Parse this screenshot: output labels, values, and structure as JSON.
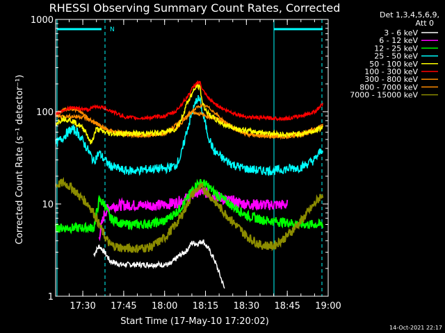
{
  "chart_data": {
    "type": "line",
    "title": "RHESSI Observing Summary Count Rates, Corrected",
    "xlabel": "Start Time (17-May-10 17:20:02)",
    "ylabel": "Corrected Count Rate (s⁻¹ detector⁻¹)",
    "y_scale": "log",
    "ylim": [
      1,
      1000
    ],
    "xlim": [
      "17:20:02",
      "19:00"
    ],
    "x_ticks": [
      "17:30",
      "17:45",
      "18:00",
      "18:15",
      "18:30",
      "18:45",
      "19:00"
    ],
    "y_ticks": [
      "1",
      "10",
      "100",
      "1000"
    ],
    "legend_header": [
      "Det 1,3,4,5,6,9,",
      "Att 0"
    ],
    "legend_position": "right",
    "footer": "14-Oct-2021 22:17",
    "marker_N": "N",
    "series": [
      {
        "name": "3 - 6 keV",
        "color": "#ffffff",
        "x": [
          "17:34",
          "17:36",
          "17:38",
          "17:40",
          "17:44",
          "17:50",
          "17:55",
          "18:02",
          "18:05",
          "18:08",
          "18:10",
          "18:12",
          "18:14",
          "18:16",
          "18:18",
          "18:20",
          "18:22"
        ],
        "values": [
          2.8,
          3.5,
          3,
          2.4,
          2.2,
          2.2,
          2.2,
          2.2,
          2.7,
          3.1,
          3.8,
          3.7,
          4,
          3.3,
          2.6,
          1.8,
          1.2
        ]
      },
      {
        "name": "6 - 12 keV",
        "color": "#ff00ff",
        "x": [
          "17:36",
          "17:38",
          "17:40",
          "17:45",
          "17:50",
          "17:55",
          "18:00",
          "18:05",
          "18:08",
          "18:10",
          "18:12",
          "18:14",
          "18:16",
          "18:18",
          "18:22",
          "18:26",
          "18:30",
          "18:35",
          "18:40",
          "18:45"
        ],
        "values": [
          4.5,
          8,
          9.5,
          9.7,
          9.7,
          9.7,
          9.8,
          10.5,
          11.5,
          12.5,
          13.5,
          13.5,
          13,
          12.5,
          11.2,
          10.5,
          10,
          9.8,
          9.8,
          9.8
        ]
      },
      {
        "name": "12 - 25 keV",
        "color": "#00ff00",
        "x": [
          "17:20",
          "17:25",
          "17:30",
          "17:34",
          "17:36",
          "17:38",
          "17:40",
          "17:45",
          "17:50",
          "17:55",
          "18:00",
          "18:05",
          "18:08",
          "18:10",
          "18:12",
          "18:14",
          "18:16",
          "18:18",
          "18:22",
          "18:26",
          "18:30",
          "18:35",
          "18:40",
          "18:45",
          "18:50",
          "18:55",
          "18:58"
        ],
        "values": [
          5.5,
          5.5,
          5.5,
          5.5,
          11,
          10,
          7,
          6,
          6,
          6.1,
          6.5,
          8.5,
          11,
          14,
          16.5,
          17,
          15.5,
          13.5,
          11,
          9,
          7.5,
          6.8,
          6.5,
          6.3,
          6,
          6,
          6
        ]
      },
      {
        "name": "25 - 50 keV",
        "color": "#00ffff",
        "x": [
          "17:20",
          "17:22",
          "17:24",
          "17:26",
          "17:28",
          "17:30",
          "17:32",
          "17:34",
          "17:36",
          "17:38",
          "17:40",
          "17:45",
          "17:50",
          "17:55",
          "18:00",
          "18:04",
          "18:06",
          "18:08",
          "18:10",
          "18:12",
          "18:13",
          "18:14",
          "18:16",
          "18:18",
          "18:22",
          "18:26",
          "18:30",
          "18:35",
          "18:40",
          "18:45",
          "18:50",
          "18:55",
          "18:58"
        ],
        "values": [
          45,
          50,
          58,
          65,
          60,
          48,
          38,
          29,
          36,
          30,
          26,
          23,
          23,
          24,
          24,
          26,
          33,
          60,
          95,
          140,
          130,
          95,
          55,
          38,
          30,
          26,
          24,
          23,
          23,
          24,
          25,
          30,
          40
        ]
      },
      {
        "name": "50 - 100 keV",
        "color": "#ffff00",
        "x": [
          "17:20",
          "17:23",
          "17:26",
          "17:29",
          "17:31",
          "17:33",
          "17:35",
          "17:38",
          "17:40",
          "17:45",
          "17:50",
          "17:55",
          "18:00",
          "18:04",
          "18:06",
          "18:08",
          "18:10",
          "18:12",
          "18:13",
          "18:14",
          "18:16",
          "18:18",
          "18:22",
          "18:26",
          "18:30",
          "18:35",
          "18:40",
          "18:45",
          "18:50",
          "18:55",
          "18:58"
        ],
        "values": [
          75,
          85,
          80,
          70,
          62,
          45,
          65,
          60,
          58,
          58,
          58,
          58,
          60,
          65,
          80,
          120,
          155,
          195,
          180,
          120,
          95,
          85,
          72,
          66,
          62,
          60,
          58,
          56,
          58,
          62,
          68
        ]
      },
      {
        "name": "100 - 300 keV",
        "color": "#ff0000",
        "x": [
          "17:20",
          "17:23",
          "17:26",
          "17:29",
          "17:32",
          "17:35",
          "17:38",
          "17:41",
          "17:45",
          "17:50",
          "17:55",
          "18:00",
          "18:04",
          "18:08",
          "18:10",
          "18:12",
          "18:13",
          "18:14",
          "18:16",
          "18:18",
          "18:22",
          "18:26",
          "18:30",
          "18:35",
          "18:40",
          "18:45",
          "18:50",
          "18:55",
          "18:58"
        ],
        "values": [
          95,
          105,
          110,
          108,
          105,
          115,
          110,
          100,
          88,
          85,
          86,
          90,
          100,
          140,
          175,
          210,
          205,
          170,
          140,
          125,
          105,
          95,
          88,
          86,
          85,
          84,
          90,
          100,
          120
        ]
      },
      {
        "name": "300 - 800 keV",
        "color": "#ff8c00",
        "x": [
          "17:20",
          "17:23",
          "17:26",
          "17:29",
          "17:32",
          "17:35",
          "17:38",
          "17:41",
          "17:45",
          "17:50",
          "17:55",
          "18:00",
          "18:04",
          "18:08",
          "18:10",
          "18:12",
          "18:14",
          "18:16",
          "18:18",
          "18:22",
          "18:26",
          "18:30",
          "18:35",
          "18:40",
          "18:45",
          "18:50",
          "18:55",
          "18:58"
        ],
        "values": [
          95,
          105,
          108,
          100,
          85,
          75,
          65,
          60,
          56,
          55,
          55,
          58,
          65,
          85,
          100,
          112,
          118,
          112,
          100,
          78,
          64,
          58,
          55,
          54,
          53,
          55,
          62,
          72
        ]
      },
      {
        "name": "800 - 7000 keV",
        "color": "#ff8c00",
        "x": [
          "17:20",
          "17:30",
          "17:40",
          "17:50",
          "18:00",
          "18:10",
          "18:20",
          "18:30",
          "18:40",
          "18:50",
          "18:58"
        ],
        "values": [
          90,
          88,
          62,
          56,
          58,
          100,
          82,
          56,
          54,
          58,
          70
        ]
      },
      {
        "name": "7000 - 15000 keV",
        "color": "#8c8c00",
        "x": [
          "17:20",
          "17:23",
          "17:26",
          "17:29",
          "17:32",
          "17:34",
          "17:36",
          "17:38",
          "17:40",
          "17:45",
          "17:50",
          "17:55",
          "18:00",
          "18:05",
          "18:08",
          "18:10",
          "18:12",
          "18:14",
          "18:16",
          "18:18",
          "18:22",
          "18:26",
          "18:30",
          "18:35",
          "18:40",
          "18:45",
          "18:50",
          "18:55",
          "18:58"
        ],
        "values": [
          16,
          17,
          15,
          12,
          10,
          8,
          6,
          4.5,
          3.6,
          3.3,
          3.3,
          3.4,
          4.3,
          6.5,
          9.5,
          12.5,
          14.5,
          15,
          13,
          11,
          8,
          6,
          4.5,
          3.6,
          3.5,
          4.5,
          6.5,
          10,
          13
        ]
      }
    ]
  }
}
